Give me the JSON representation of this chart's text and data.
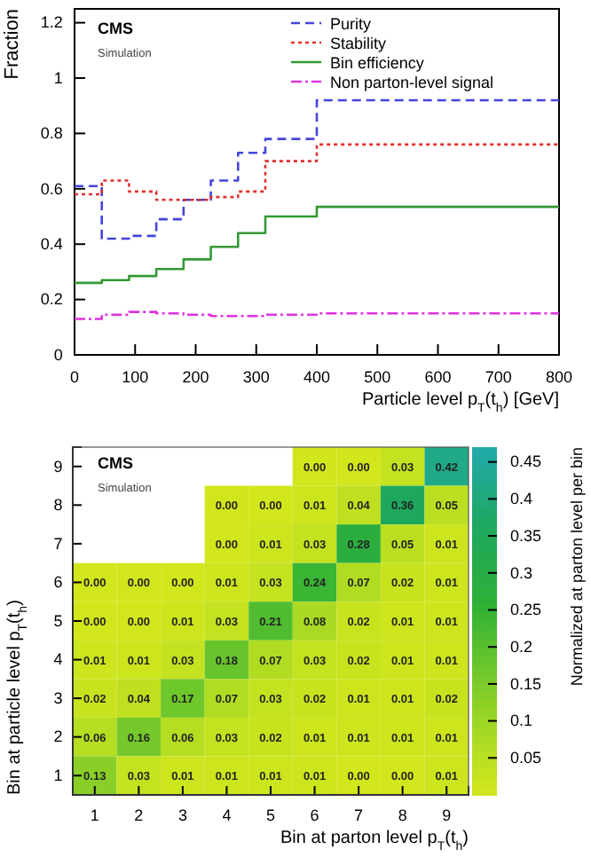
{
  "chart_data": [
    {
      "type": "step",
      "xlabel": "Particle level p$_{T}$(t$_{h}$) [GeV]",
      "ylabel": "Fraction",
      "x": [
        0,
        45,
        90,
        135,
        180,
        225,
        270,
        315,
        400,
        800
      ],
      "xlim": [
        0,
        800
      ],
      "xticks": [
        0,
        100,
        200,
        300,
        400,
        500,
        600,
        700,
        800
      ],
      "ylim": [
        0,
        1.25
      ],
      "yticks": [
        0,
        0.2,
        0.4,
        0.6,
        0.8,
        1,
        1.2
      ],
      "grid": false,
      "legend": "top right",
      "annotations": [
        "CMS",
        "Simulation"
      ],
      "series": [
        {
          "name": "Purity",
          "color": "#4444dd",
          "line_style": "dashed",
          "values": [
            0.61,
            0.42,
            0.43,
            0.49,
            0.56,
            0.63,
            0.73,
            0.78,
            0.92,
            0.92
          ]
        },
        {
          "name": "Stability",
          "color": "#e03030",
          "line_style": "dotted",
          "values": [
            0.58,
            0.63,
            0.59,
            0.56,
            0.56,
            0.57,
            0.59,
            0.7,
            0.76,
            0.76
          ]
        },
        {
          "name": "Bin efficiency",
          "color": "#339933",
          "line_style": "solid",
          "values": [
            0.26,
            0.27,
            0.285,
            0.31,
            0.345,
            0.39,
            0.44,
            0.5,
            0.535,
            0.535
          ]
        },
        {
          "name": "Non parton-level signal",
          "color": "#dd33dd",
          "line_style": "dashdot",
          "values": [
            0.13,
            0.145,
            0.155,
            0.15,
            0.145,
            0.14,
            0.14,
            0.145,
            0.15,
            0.15
          ]
        }
      ]
    },
    {
      "type": "heatmap",
      "xlabel": "Bin at parton level p$_{T}$(t$_{h}$)",
      "ylabel": "Bin at particle level p$_{T}$(t$_{h}$)",
      "clabel": "Normalized at parton level per bin",
      "annotations": [
        "CMS",
        "Simulation"
      ],
      "categories": [
        "1",
        "2",
        "3",
        "4",
        "5",
        "6",
        "7",
        "8",
        "9"
      ],
      "y_categories": [
        "9",
        "8",
        "7",
        "6",
        "5",
        "4",
        "3",
        "2",
        "1"
      ],
      "clim": [
        0,
        0.47
      ],
      "cticks": [
        0.05,
        0.1,
        0.15,
        0.2,
        0.25,
        0.3,
        0.35,
        0.4,
        0.45
      ],
      "cells": [
        [
          null,
          null,
          null,
          null,
          null,
          0,
          0,
          0.03,
          0.42
        ],
        [
          null,
          null,
          null,
          0,
          0,
          0.01,
          0.04,
          0.36,
          0.05
        ],
        [
          null,
          null,
          null,
          0,
          0.01,
          0.03,
          0.28,
          0.05,
          0.01
        ],
        [
          0,
          0,
          0,
          0.01,
          0.03,
          0.24,
          0.07,
          0.02,
          0.01
        ],
        [
          0,
          0,
          0.01,
          0.03,
          0.21,
          0.08,
          0.02,
          0.01,
          0.01
        ],
        [
          0.01,
          0.01,
          0.03,
          0.18,
          0.07,
          0.03,
          0.02,
          0.01,
          0.01
        ],
        [
          0.02,
          0.04,
          0.17,
          0.07,
          0.03,
          0.02,
          0.01,
          0.01,
          0.02
        ],
        [
          0.06,
          0.16,
          0.06,
          0.03,
          0.02,
          0.01,
          0.01,
          0.01,
          0.01
        ],
        [
          0.13,
          0.03,
          0.01,
          0.01,
          0.01,
          0.01,
          0,
          0,
          0.01
        ]
      ],
      "cell_labels": [
        [
          null,
          null,
          null,
          null,
          null,
          "0.00",
          "0.00",
          "0.03",
          "0.42"
        ],
        [
          null,
          null,
          null,
          "0.00",
          "0.00",
          "0.01",
          "0.04",
          "0.36",
          "0.05"
        ],
        [
          null,
          null,
          null,
          "0.00",
          "0.01",
          "0.03",
          "0.28",
          "0.05",
          "0.01"
        ],
        [
          "0.00",
          "0.00",
          "0.00",
          "0.01",
          "0.03",
          "0.24",
          "0.07",
          "0.02",
          "0.01"
        ],
        [
          "0.00",
          "0.00",
          "0.01",
          "0.03",
          "0.21",
          "0.08",
          "0.02",
          "0.01",
          "0.01"
        ],
        [
          "0.01",
          "0.01",
          "0.03",
          "0.18",
          "0.07",
          "0.03",
          "0.02",
          "0.01",
          "0.01"
        ],
        [
          "0.02",
          "0.04",
          "0.17",
          "0.07",
          "0.03",
          "0.02",
          "0.01",
          "0.01",
          "0.02"
        ],
        [
          "0.06",
          "0.16",
          "0.06",
          "0.03",
          "0.02",
          "0.01",
          "0.01",
          "0.01",
          "0.01"
        ],
        [
          "0.13",
          "0.03",
          "0.01",
          "0.01",
          "0.01",
          "0.01",
          "0.00",
          "0.00",
          "0.01"
        ]
      ]
    }
  ]
}
